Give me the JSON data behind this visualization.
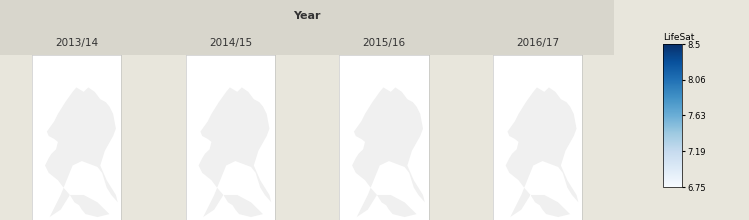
{
  "title": "Year",
  "years": [
    "2013/14",
    "2014/15",
    "2015/16",
    "2016/17"
  ],
  "colorbar_label": "LifeSat",
  "colorbar_ticks": [
    6.75,
    7.19,
    7.63,
    8.06,
    8.5
  ],
  "vmin": 6.75,
  "vmax": 8.5,
  "header_bg": "#d8d6cc",
  "panel_bg": "#d8d6cc",
  "colormap": "Blues",
  "fig_bg": "#e8e6dc",
  "sea_color": "#ffffff",
  "border_color": "#ffffff",
  "lon_min": -7.6,
  "lon_max": 2.1,
  "lat_min": 49.8,
  "lat_max": 61.0,
  "title_fontsize": 8,
  "year_fontsize": 7.5
}
